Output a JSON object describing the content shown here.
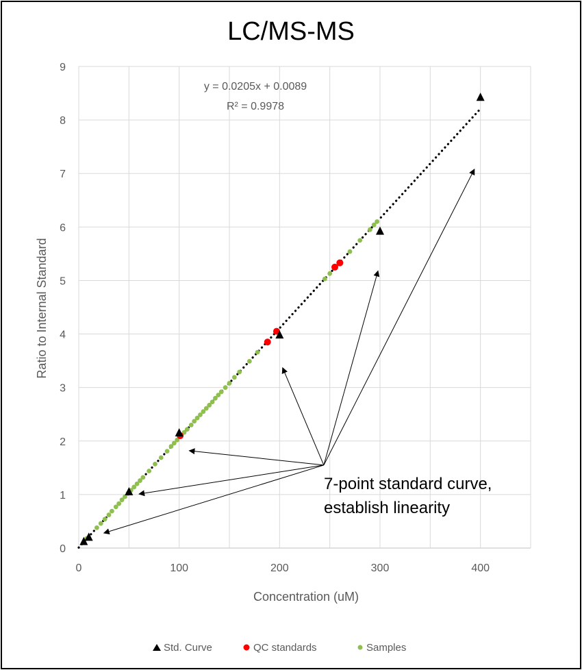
{
  "chart_data": {
    "type": "scatter",
    "title": "LC/MS-MS",
    "xlabel": "Concentration (uM)",
    "ylabel": "Ratio to Internal Standard",
    "xlim": [
      0,
      450
    ],
    "ylim": [
      0,
      9
    ],
    "x_ticks": [
      "0",
      "100",
      "200",
      "300",
      "400"
    ],
    "y_ticks": [
      "0",
      "1",
      "2",
      "3",
      "4",
      "5",
      "6",
      "7",
      "8",
      "9"
    ],
    "grid": true,
    "legend_position": "bottom",
    "series": [
      {
        "name": "Std. Curve",
        "marker": "triangle",
        "color": "#000000",
        "points": [
          [
            5,
            0.12
          ],
          [
            10,
            0.2
          ],
          [
            50,
            1.05
          ],
          [
            100,
            2.15
          ],
          [
            200,
            3.98
          ],
          [
            300,
            5.92
          ],
          [
            400,
            8.42
          ]
        ]
      },
      {
        "name": "QC standards",
        "marker": "circle",
        "color": "#ff0000",
        "points": [
          [
            101,
            2.1
          ],
          [
            188,
            3.85
          ],
          [
            197,
            4.05
          ],
          [
            255,
            5.25
          ],
          [
            260,
            5.33
          ]
        ]
      },
      {
        "name": "Samples",
        "marker": "circle",
        "color": "#8fbf4f",
        "points": [
          [
            8,
            0.18
          ],
          [
            18,
            0.38
          ],
          [
            22,
            0.46
          ],
          [
            26,
            0.54
          ],
          [
            30,
            0.62
          ],
          [
            33,
            0.69
          ],
          [
            37,
            0.77
          ],
          [
            40,
            0.83
          ],
          [
            43,
            0.9
          ],
          [
            46,
            0.96
          ],
          [
            49,
            1.02
          ],
          [
            52,
            1.08
          ],
          [
            55,
            1.14
          ],
          [
            58,
            1.2
          ],
          [
            61,
            1.26
          ],
          [
            64,
            1.32
          ],
          [
            70,
            1.44
          ],
          [
            76,
            1.57
          ],
          [
            82,
            1.69
          ],
          [
            88,
            1.81
          ],
          [
            92,
            1.9
          ],
          [
            95,
            1.96
          ],
          [
            98,
            2.02
          ],
          [
            105,
            2.16
          ],
          [
            108,
            2.22
          ],
          [
            112,
            2.3
          ],
          [
            115,
            2.37
          ],
          [
            118,
            2.43
          ],
          [
            121,
            2.49
          ],
          [
            124,
            2.55
          ],
          [
            127,
            2.61
          ],
          [
            130,
            2.67
          ],
          [
            133,
            2.73
          ],
          [
            136,
            2.8
          ],
          [
            139,
            2.86
          ],
          [
            142,
            2.92
          ],
          [
            146,
            3.0
          ],
          [
            150,
            3.08
          ],
          [
            155,
            3.19
          ],
          [
            160,
            3.29
          ],
          [
            170,
            3.49
          ],
          [
            178,
            3.66
          ],
          [
            245,
            5.03
          ],
          [
            250,
            5.13
          ],
          [
            270,
            5.54
          ],
          [
            280,
            5.75
          ],
          [
            290,
            5.95
          ],
          [
            294,
            6.04
          ],
          [
            297,
            6.1
          ]
        ]
      }
    ],
    "trendline": {
      "type": "linear",
      "slope": 0.0205,
      "intercept": 0.0089,
      "x_range": [
        0,
        400
      ],
      "style": "dotted",
      "color": "#000000"
    },
    "equation_text": "y = 0.0205x + 0.0089",
    "r2_text": "R² = 0.9978",
    "annotation": {
      "line1": "7-point standard curve,",
      "line2": "establish linearity",
      "origin": [
        244,
        1.55
      ],
      "arrow_targets": [
        [
          25,
          0.28
        ],
        [
          60,
          1.01
        ],
        [
          110,
          1.82
        ],
        [
          203,
          3.37
        ],
        [
          298,
          5.18
        ],
        [
          394,
          7.08
        ]
      ]
    }
  },
  "legend": {
    "items": [
      "Std. Curve",
      "QC standards",
      "Samples"
    ]
  }
}
